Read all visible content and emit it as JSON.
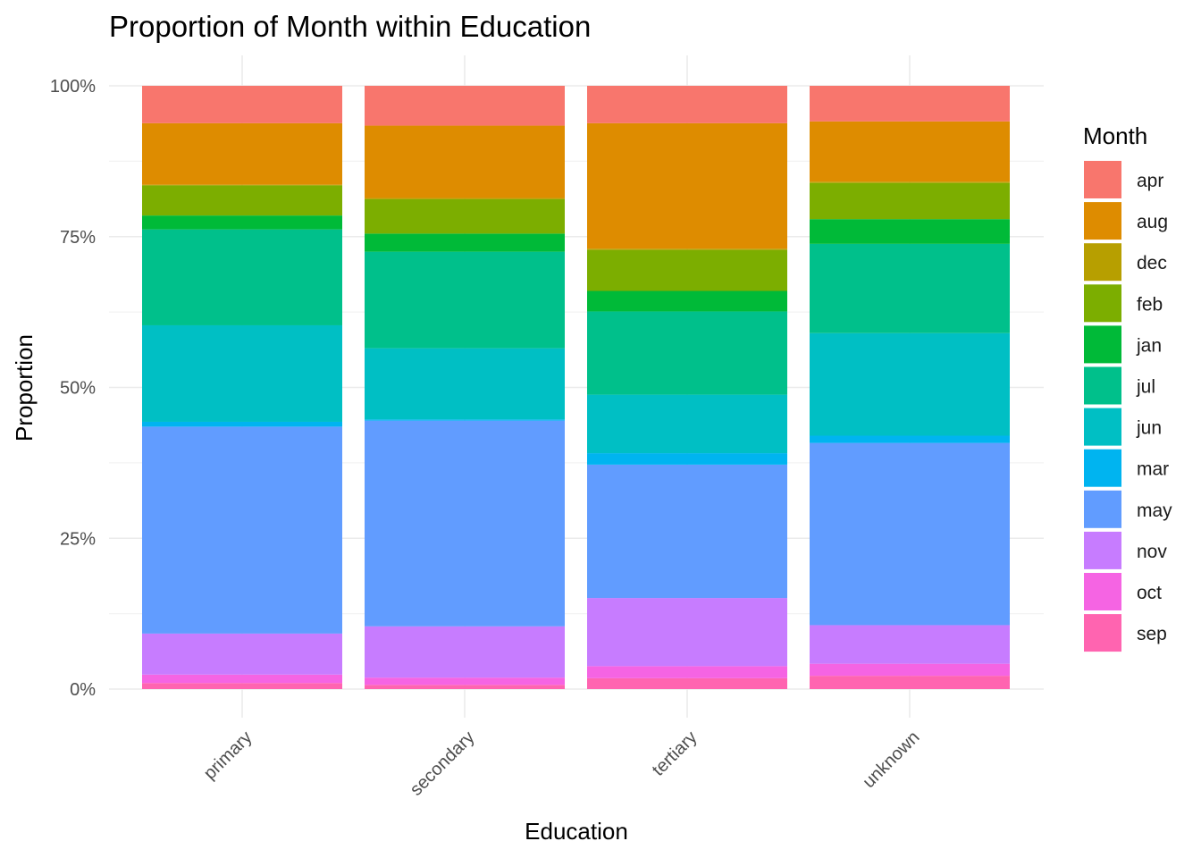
{
  "chart_data": {
    "type": "bar",
    "stacked": true,
    "normalized": true,
    "title": "Proportion of Month within Education",
    "xlabel": "Education",
    "ylabel": "Proportion",
    "categories": [
      "primary",
      "secondary",
      "tertiary",
      "unknown"
    ],
    "ylim": [
      0,
      1
    ],
    "y_ticks": [
      0,
      0.25,
      0.5,
      0.75,
      1.0
    ],
    "y_tick_labels": [
      "0%",
      "25%",
      "50%",
      "75%",
      "100%"
    ],
    "grid": true,
    "legend": {
      "title": "Month",
      "position": "right"
    },
    "series": [
      {
        "name": "apr",
        "color": "#F8766D",
        "values": [
          0.062,
          0.066,
          0.062,
          0.059
        ]
      },
      {
        "name": "aug",
        "color": "#DE8C00",
        "values": [
          0.102,
          0.12,
          0.208,
          0.1
        ]
      },
      {
        "name": "dec",
        "color": "#B79F00",
        "values": [
          0.001,
          0.002,
          0.002,
          0.002
        ]
      },
      {
        "name": "feb",
        "color": "#7CAE00",
        "values": [
          0.05,
          0.057,
          0.068,
          0.06
        ]
      },
      {
        "name": "jan",
        "color": "#00BA38",
        "values": [
          0.023,
          0.03,
          0.034,
          0.041
        ]
      },
      {
        "name": "jul",
        "color": "#00C08B",
        "values": [
          0.159,
          0.16,
          0.138,
          0.148
        ]
      },
      {
        "name": "jun",
        "color": "#00BFC4",
        "values": [
          0.16,
          0.118,
          0.097,
          0.17
        ]
      },
      {
        "name": "mar",
        "color": "#00B4F0",
        "values": [
          0.008,
          0.002,
          0.019,
          0.012
        ]
      },
      {
        "name": "may",
        "color": "#619CFF",
        "values": [
          0.343,
          0.341,
          0.221,
          0.302
        ]
      },
      {
        "name": "nov",
        "color": "#C77CFF",
        "values": [
          0.068,
          0.085,
          0.113,
          0.064
        ]
      },
      {
        "name": "oct",
        "color": "#F564E3",
        "values": [
          0.014,
          0.012,
          0.02,
          0.02
        ]
      },
      {
        "name": "sep",
        "color": "#FF64B0",
        "values": [
          0.01,
          0.007,
          0.018,
          0.022
        ]
      }
    ]
  }
}
